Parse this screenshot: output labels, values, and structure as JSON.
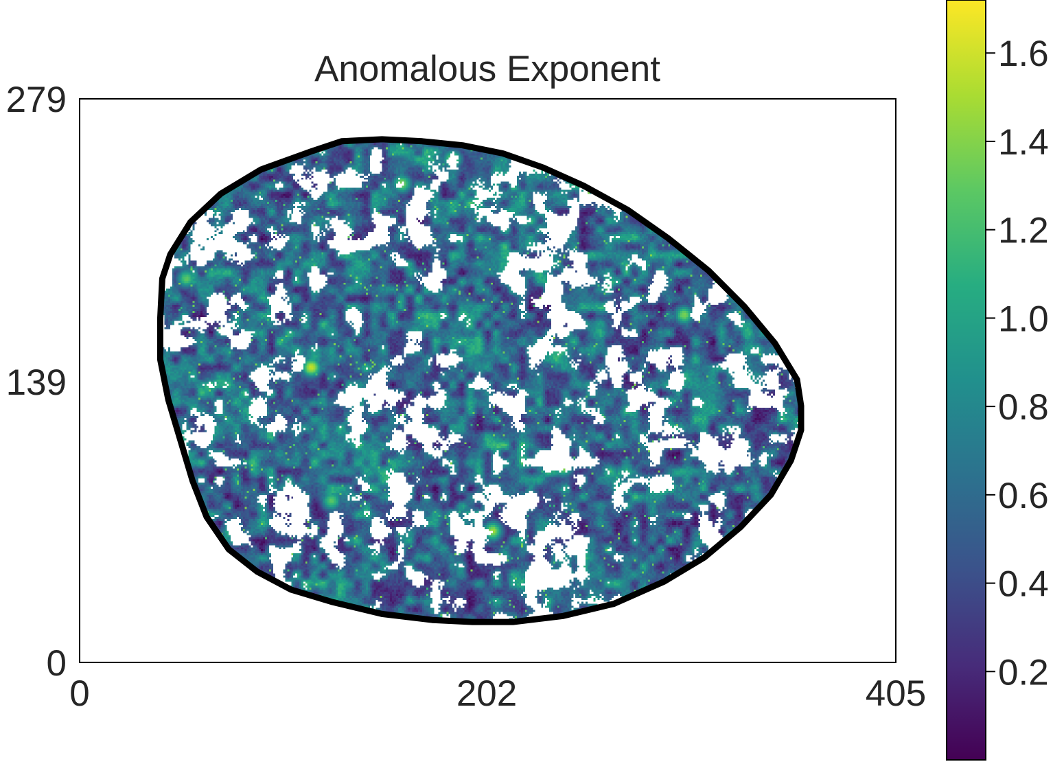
{
  "chart_data": {
    "type": "heatmap",
    "title": "Anomalous Exponent",
    "xlabel": "",
    "ylabel": "",
    "xlim": [
      0,
      405
    ],
    "ylim": [
      0,
      279
    ],
    "x_ticks": [
      "0",
      "202",
      "405"
    ],
    "y_ticks": [
      "0",
      "139",
      "279"
    ],
    "grid": false,
    "colormap": "viridis",
    "colorbar": {
      "range": [
        0.0,
        1.72
      ],
      "ticks": [
        "0.2",
        "0.4",
        "0.6",
        "0.8",
        "1.0",
        "1.2",
        "1.4",
        "1.6"
      ],
      "tick_values": [
        0.2,
        0.4,
        0.6,
        0.8,
        1.0,
        1.2,
        1.4,
        1.6
      ],
      "placement": "right"
    },
    "boundary": {
      "color": "#000000",
      "points": [
        [
          41,
          190
        ],
        [
          45,
          202
        ],
        [
          55,
          218
        ],
        [
          70,
          232
        ],
        [
          90,
          244
        ],
        [
          115,
          253
        ],
        [
          130,
          258
        ],
        [
          150,
          259
        ],
        [
          170,
          258
        ],
        [
          190,
          256
        ],
        [
          210,
          252
        ],
        [
          230,
          245
        ],
        [
          250,
          236
        ],
        [
          272,
          224
        ],
        [
          292,
          210
        ],
        [
          312,
          194
        ],
        [
          330,
          176
        ],
        [
          345,
          158
        ],
        [
          356,
          140
        ],
        [
          358,
          127
        ],
        [
          358,
          115
        ],
        [
          353,
          100
        ],
        [
          343,
          83
        ],
        [
          328,
          67
        ],
        [
          310,
          52
        ],
        [
          290,
          40
        ],
        [
          265,
          29
        ],
        [
          240,
          23
        ],
        [
          215,
          20
        ],
        [
          195,
          20
        ],
        [
          175,
          21
        ],
        [
          150,
          24
        ],
        [
          125,
          30
        ],
        [
          105,
          36
        ],
        [
          88,
          45
        ],
        [
          74,
          56
        ],
        [
          63,
          72
        ],
        [
          56,
          90
        ],
        [
          50,
          110
        ],
        [
          44,
          130
        ],
        [
          40,
          150
        ],
        [
          40,
          170
        ]
      ]
    },
    "field_summary": {
      "grid_size": [
        405,
        279
      ],
      "value_range": [
        0.0,
        1.72
      ],
      "dominant_range": [
        0.3,
        0.9
      ],
      "masked_fraction_inside": 0.35,
      "hotspots": [
        [
          240,
          97,
          1.5
        ],
        [
          160,
          237,
          1.4
        ],
        [
          185,
          249,
          1.4
        ],
        [
          115,
          146,
          1.6
        ],
        [
          205,
          65,
          1.5
        ],
        [
          125,
          80,
          1.3
        ],
        [
          300,
          172,
          1.4
        ],
        [
          53,
          190,
          1.3
        ]
      ]
    }
  }
}
